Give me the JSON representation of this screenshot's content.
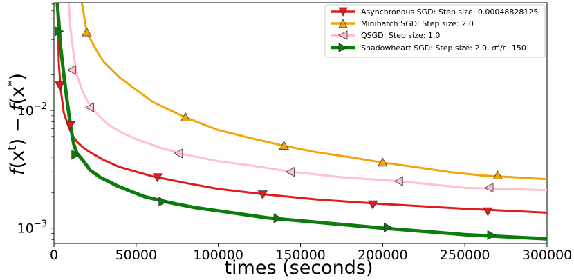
{
  "chart_data": {
    "type": "line",
    "title": "",
    "xlabel": "times (seconds)",
    "ylabel": "f(x^t) − f(x^*)",
    "ylabel_parts": {
      "f1": "f",
      "x1": "x",
      "t": "t",
      "mid": ") − ",
      "f2": "f",
      "x2": "x",
      "star": "*",
      "close": ")",
      "open": "("
    },
    "xlim": [
      0,
      300000
    ],
    "ylim": [
      0.00074,
      0.082
    ],
    "yscale": "log",
    "grid": false,
    "legend_position": "top-right",
    "x_ticks": [
      {
        "value": 0,
        "label": "0"
      },
      {
        "value": 50000,
        "label": "50000"
      },
      {
        "value": 100000,
        "label": "100000"
      },
      {
        "value": 150000,
        "label": "150000"
      },
      {
        "value": 200000,
        "label": "200000"
      },
      {
        "value": 250000,
        "label": "250000"
      },
      {
        "value": 300000,
        "label": "300000"
      }
    ],
    "y_ticks": [
      {
        "value": 0.01,
        "mantissa": "10",
        "exponent": "−2"
      },
      {
        "value": 0.001,
        "mantissa": "10",
        "exponent": "−3"
      }
    ],
    "series": [
      {
        "name": "Asynchronous SGD: Step size: 0.00048828125",
        "color": "#e31a1c",
        "marker": "triangle-down",
        "x": [
          2000,
          3000,
          4000,
          6000,
          9000,
          11000,
          14000,
          18000,
          22000,
          30000,
          40000,
          60000,
          80000,
          100000,
          130000,
          160000,
          200000,
          250000,
          300000
        ],
        "y": [
          0.08,
          0.025,
          0.0155,
          0.0095,
          0.0072,
          0.0062,
          0.0054,
          0.0048,
          0.0044,
          0.0038,
          0.0033,
          0.00275,
          0.00242,
          0.00215,
          0.00192,
          0.00175,
          0.0016,
          0.00146,
          0.00135
        ],
        "markers_x": [
          3500,
          10000,
          63000,
          127000,
          194000,
          264000
        ],
        "markers_y": [
          0.0163,
          0.0075,
          0.0027,
          0.00193,
          0.00159,
          0.00139
        ]
      },
      {
        "name": "Minibatch SGD: Step size: 2.0",
        "color": "#f5a30a",
        "marker": "triangle-up",
        "x": [
          17000,
          20000,
          25000,
          30000,
          40000,
          60000,
          80000,
          100000,
          120000,
          140000,
          160000,
          180000,
          200000,
          220000,
          240000,
          260000,
          280000,
          300000
        ],
        "y": [
          0.082,
          0.046,
          0.034,
          0.026,
          0.019,
          0.0118,
          0.0087,
          0.0068,
          0.0058,
          0.005,
          0.0044,
          0.004,
          0.0036,
          0.0033,
          0.003,
          0.0028,
          0.0027,
          0.0026
        ],
        "markers_x": [
          20000,
          80000,
          140000,
          200000,
          270000
        ],
        "markers_y": [
          0.046,
          0.0087,
          0.005,
          0.0036,
          0.0028
        ]
      },
      {
        "name": "QSGD: Step size: 1.0",
        "color": "#ffc0cb",
        "marker": "triangle-left",
        "x": [
          9000,
          10000,
          12000,
          14000,
          17000,
          20000,
          23000,
          28000,
          33000,
          40000,
          50000,
          65000,
          80000,
          100000,
          120000,
          145000,
          175000,
          210000,
          250000,
          300000
        ],
        "y": [
          0.082,
          0.05,
          0.03,
          0.02,
          0.015,
          0.0122,
          0.0105,
          0.0088,
          0.0076,
          0.0066,
          0.0057,
          0.0048,
          0.0042,
          0.0037,
          0.0034,
          0.003,
          0.0027,
          0.0025,
          0.0022,
          0.0021
        ],
        "markers_x": [
          11000,
          22000,
          76000,
          144000,
          210000,
          265000
        ],
        "markers_y": [
          0.022,
          0.0106,
          0.0043,
          0.003,
          0.0025,
          0.0022
        ]
      },
      {
        "name": "Shadowheart SGD: Step size: 2.0, σ²/ε: 150",
        "name_parts": {
          "pre": "Shadowheart SGD: Step size: 2.0, ",
          "sigma": "σ",
          "sq": "2",
          "rest": "/ε: 150"
        },
        "color": "#0a7d0a",
        "marker": "triangle-right",
        "x": [
          2000,
          3000,
          4000,
          6000,
          8000,
          10000,
          12000,
          14000,
          16000,
          18000,
          20000,
          22000,
          25000,
          28000,
          33000,
          38000,
          45000,
          55000,
          70000,
          85000,
          100000,
          130000,
          160000,
          200000,
          250000,
          300000
        ],
        "y": [
          0.082,
          0.055,
          0.035,
          0.02,
          0.012,
          0.0075,
          0.0052,
          0.0043,
          0.004,
          0.0037,
          0.0034,
          0.0031,
          0.0029,
          0.0027,
          0.0025,
          0.0023,
          0.0021,
          0.00185,
          0.00165,
          0.0015,
          0.0014,
          0.00122,
          0.00112,
          0.001,
          0.00088,
          0.00081
        ],
        "markers_x": [
          3000,
          13000,
          66000,
          136000,
          203000,
          266000
        ],
        "markers_y": [
          0.047,
          0.0042,
          0.00168,
          0.00121,
          0.00101,
          0.00087
        ]
      }
    ]
  }
}
